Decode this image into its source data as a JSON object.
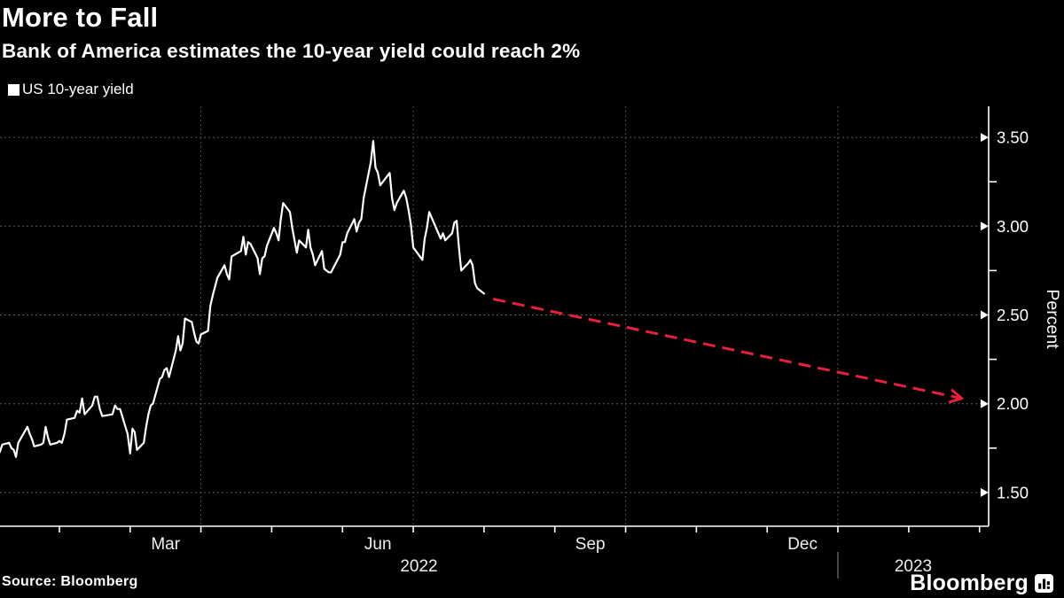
{
  "header": {
    "title": "More to Fall",
    "subtitle": "Bank of America estimates the 10-year yield could reach 2%"
  },
  "legend": {
    "label": "US 10-year yield",
    "marker_color": "#ffffff"
  },
  "footer": {
    "source": "Source: Bloomberg",
    "logo_text": "Bloomberg"
  },
  "colors": {
    "background": "#000000",
    "line": "#ffffff",
    "projection": "#ea1f3d",
    "grid_h": "#5a5a5a",
    "grid_v": "#505050",
    "axis": "#ffffff",
    "tick": "#ffffff",
    "text": "#ffffff",
    "month_label": "#efefef",
    "year_divider": "#8a8a8a"
  },
  "chart_data": {
    "type": "line",
    "title": "More to Fall",
    "subtitle": "Bank of America estimates the 10-year yield could reach 2%",
    "ylabel": "Percent",
    "legend_entries": [
      "US 10-year yield"
    ],
    "grid": "dotted, horizontal at 0.50 steps, vertical at quarter starts",
    "legend_position": "top-left",
    "ylim": [
      1.31,
      3.675
    ],
    "xlim": [
      "2022-01-06",
      "2023-03-05"
    ],
    "y_ticks": [
      1.5,
      2.0,
      2.5,
      3.0,
      3.5
    ],
    "y_minor_ticks": [
      1.75,
      2.25,
      2.75,
      3.25
    ],
    "x_month_labels": [
      {
        "label": "Mar",
        "month": "2022-03"
      },
      {
        "label": "Jun",
        "month": "2022-06"
      },
      {
        "label": "Sep",
        "month": "2022-09"
      },
      {
        "label": "Dec",
        "month": "2022-12"
      }
    ],
    "x_year_labels": [
      {
        "label": "2022",
        "year": 2022
      },
      {
        "label": "2023",
        "year": 2023
      }
    ],
    "series": [
      {
        "name": "US 10-year yield",
        "color": "#ffffff",
        "points": [
          [
            "2022-01-03",
            1.63
          ],
          [
            "2022-01-04",
            1.66
          ],
          [
            "2022-01-05",
            1.71
          ],
          [
            "2022-01-06",
            1.73
          ],
          [
            "2022-01-07",
            1.77
          ],
          [
            "2022-01-10",
            1.78
          ],
          [
            "2022-01-11",
            1.75
          ],
          [
            "2022-01-12",
            1.74
          ],
          [
            "2022-01-13",
            1.7
          ],
          [
            "2022-01-14",
            1.78
          ],
          [
            "2022-01-18",
            1.87
          ],
          [
            "2022-01-19",
            1.83
          ],
          [
            "2022-01-20",
            1.8
          ],
          [
            "2022-01-21",
            1.76
          ],
          [
            "2022-01-24",
            1.77
          ],
          [
            "2022-01-25",
            1.78
          ],
          [
            "2022-01-26",
            1.87
          ],
          [
            "2022-01-27",
            1.81
          ],
          [
            "2022-01-28",
            1.77
          ],
          [
            "2022-01-31",
            1.78
          ],
          [
            "2022-02-01",
            1.79
          ],
          [
            "2022-02-02",
            1.78
          ],
          [
            "2022-02-03",
            1.83
          ],
          [
            "2022-02-04",
            1.91
          ],
          [
            "2022-02-07",
            1.92
          ],
          [
            "2022-02-08",
            1.96
          ],
          [
            "2022-02-09",
            1.95
          ],
          [
            "2022-02-10",
            2.03
          ],
          [
            "2022-02-11",
            1.94
          ],
          [
            "2022-02-14",
            1.99
          ],
          [
            "2022-02-15",
            2.04
          ],
          [
            "2022-02-16",
            2.04
          ],
          [
            "2022-02-17",
            1.97
          ],
          [
            "2022-02-18",
            1.93
          ],
          [
            "2022-02-22",
            1.94
          ],
          [
            "2022-02-23",
            1.99
          ],
          [
            "2022-02-24",
            1.97
          ],
          [
            "2022-02-25",
            1.97
          ],
          [
            "2022-02-28",
            1.83
          ],
          [
            "2022-03-01",
            1.72
          ],
          [
            "2022-03-02",
            1.86
          ],
          [
            "2022-03-03",
            1.84
          ],
          [
            "2022-03-04",
            1.74
          ],
          [
            "2022-03-07",
            1.78
          ],
          [
            "2022-03-08",
            1.87
          ],
          [
            "2022-03-09",
            1.94
          ],
          [
            "2022-03-10",
            1.99
          ],
          [
            "2022-03-11",
            2.0
          ],
          [
            "2022-03-14",
            2.14
          ],
          [
            "2022-03-15",
            2.15
          ],
          [
            "2022-03-16",
            2.19
          ],
          [
            "2022-03-17",
            2.2
          ],
          [
            "2022-03-18",
            2.15
          ],
          [
            "2022-03-21",
            2.3
          ],
          [
            "2022-03-22",
            2.38
          ],
          [
            "2022-03-23",
            2.3
          ],
          [
            "2022-03-24",
            2.34
          ],
          [
            "2022-03-25",
            2.48
          ],
          [
            "2022-03-28",
            2.46
          ],
          [
            "2022-03-29",
            2.4
          ],
          [
            "2022-03-30",
            2.35
          ],
          [
            "2022-03-31",
            2.34
          ],
          [
            "2022-04-01",
            2.39
          ],
          [
            "2022-04-04",
            2.41
          ],
          [
            "2022-04-05",
            2.55
          ],
          [
            "2022-04-06",
            2.61
          ],
          [
            "2022-04-07",
            2.66
          ],
          [
            "2022-04-08",
            2.71
          ],
          [
            "2022-04-11",
            2.78
          ],
          [
            "2022-04-12",
            2.73
          ],
          [
            "2022-04-13",
            2.7
          ],
          [
            "2022-04-14",
            2.83
          ],
          [
            "2022-04-18",
            2.86
          ],
          [
            "2022-04-19",
            2.94
          ],
          [
            "2022-04-20",
            2.84
          ],
          [
            "2022-04-21",
            2.91
          ],
          [
            "2022-04-22",
            2.9
          ],
          [
            "2022-04-25",
            2.82
          ],
          [
            "2022-04-26",
            2.73
          ],
          [
            "2022-04-27",
            2.82
          ],
          [
            "2022-04-28",
            2.83
          ],
          [
            "2022-04-29",
            2.89
          ],
          [
            "2022-05-02",
            2.99
          ],
          [
            "2022-05-03",
            2.96
          ],
          [
            "2022-05-04",
            2.92
          ],
          [
            "2022-05-05",
            3.04
          ],
          [
            "2022-05-06",
            3.13
          ],
          [
            "2022-05-09",
            3.08
          ],
          [
            "2022-05-10",
            2.99
          ],
          [
            "2022-05-11",
            2.92
          ],
          [
            "2022-05-12",
            2.85
          ],
          [
            "2022-05-13",
            2.92
          ],
          [
            "2022-05-16",
            2.88
          ],
          [
            "2022-05-17",
            2.98
          ],
          [
            "2022-05-18",
            2.88
          ],
          [
            "2022-05-19",
            2.84
          ],
          [
            "2022-05-20",
            2.78
          ],
          [
            "2022-05-23",
            2.86
          ],
          [
            "2022-05-24",
            2.76
          ],
          [
            "2022-05-25",
            2.75
          ],
          [
            "2022-05-26",
            2.74
          ],
          [
            "2022-05-27",
            2.74
          ],
          [
            "2022-05-31",
            2.84
          ],
          [
            "2022-06-01",
            2.91
          ],
          [
            "2022-06-02",
            2.91
          ],
          [
            "2022-06-03",
            2.96
          ],
          [
            "2022-06-06",
            3.04
          ],
          [
            "2022-06-07",
            2.97
          ],
          [
            "2022-06-08",
            3.02
          ],
          [
            "2022-06-09",
            3.04
          ],
          [
            "2022-06-10",
            3.16
          ],
          [
            "2022-06-13",
            3.36
          ],
          [
            "2022-06-14",
            3.48
          ],
          [
            "2022-06-15",
            3.33
          ],
          [
            "2022-06-16",
            3.3
          ],
          [
            "2022-06-17",
            3.23
          ],
          [
            "2022-06-21",
            3.3
          ],
          [
            "2022-06-22",
            3.16
          ],
          [
            "2022-06-23",
            3.09
          ],
          [
            "2022-06-24",
            3.13
          ],
          [
            "2022-06-27",
            3.2
          ],
          [
            "2022-06-28",
            3.16
          ],
          [
            "2022-06-29",
            3.09
          ],
          [
            "2022-06-30",
            3.01
          ],
          [
            "2022-07-01",
            2.88
          ],
          [
            "2022-07-05",
            2.81
          ],
          [
            "2022-07-06",
            2.93
          ],
          [
            "2022-07-07",
            2.99
          ],
          [
            "2022-07-08",
            3.08
          ],
          [
            "2022-07-11",
            2.99
          ],
          [
            "2022-07-12",
            2.96
          ],
          [
            "2022-07-13",
            2.93
          ],
          [
            "2022-07-14",
            2.96
          ],
          [
            "2022-07-15",
            2.92
          ],
          [
            "2022-07-18",
            2.96
          ],
          [
            "2022-07-19",
            3.02
          ],
          [
            "2022-07-20",
            3.03
          ],
          [
            "2022-07-21",
            2.88
          ],
          [
            "2022-07-22",
            2.75
          ],
          [
            "2022-07-25",
            2.79
          ],
          [
            "2022-07-26",
            2.81
          ],
          [
            "2022-07-27",
            2.78
          ],
          [
            "2022-07-28",
            2.68
          ],
          [
            "2022-07-29",
            2.65
          ],
          [
            "2022-08-01",
            2.62
          ]
        ]
      }
    ],
    "projection_arrow": {
      "name": "BofA estimate path",
      "style": "dashed",
      "color": "#ea1f3d",
      "from": [
        "2022-08-05",
        2.59
      ],
      "to": [
        "2023-02-22",
        2.03
      ]
    }
  }
}
